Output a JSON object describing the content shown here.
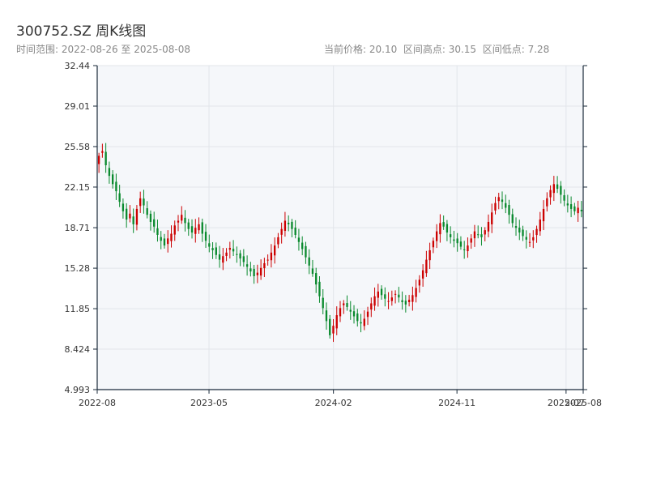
{
  "title": "300752.SZ 周K线图",
  "subtitle_left": "时间范围: 2022-08-26 至 2025-08-08",
  "stats": {
    "current": "当前价格: 20.10",
    "high": "区间高点: 30.15",
    "low": "区间低点: 7.28"
  },
  "colors": {
    "up": "#cc0000",
    "down": "#0a8a2e",
    "plot_bg": "#f5f7fa",
    "grid": "#e2e5ea",
    "axis": "#1a2a3a"
  },
  "chart_data": {
    "type": "candlestick",
    "period": "weekly",
    "x_range": [
      "2022-08-26",
      "2025-08-08"
    ],
    "ylim": [
      4.993,
      32.44
    ],
    "yticks": [
      "32.44",
      "29.01",
      "25.58",
      "22.15",
      "18.71",
      "15.28",
      "11.85",
      "8.424",
      "4.993"
    ],
    "xticks": [
      "2022-08",
      "2023-05",
      "2024-02",
      "2024-11",
      "2025-07",
      "2025-08"
    ],
    "grid": true,
    "close_series": [
      24.8,
      25.2,
      24.0,
      23.1,
      22.4,
      21.8,
      20.9,
      20.1,
      19.4,
      19.9,
      19.0,
      20.3,
      21.2,
      20.6,
      19.8,
      19.2,
      18.8,
      18.1,
      17.6,
      17.2,
      17.8,
      18.2,
      18.9,
      19.3,
      19.8,
      19.1,
      18.6,
      18.3,
      18.7,
      19.0,
      18.2,
      17.6,
      17.1,
      16.8,
      16.4,
      16.0,
      16.3,
      16.6,
      17.0,
      16.7,
      16.4,
      16.1,
      15.8,
      15.4,
      15.0,
      14.6,
      14.9,
      15.3,
      15.7,
      16.0,
      16.6,
      17.2,
      17.9,
      18.6,
      19.3,
      19.0,
      18.6,
      18.1,
      17.5,
      16.9,
      16.2,
      15.5,
      14.8,
      13.9,
      12.9,
      11.9,
      10.8,
      9.6,
      10.4,
      11.3,
      11.9,
      12.3,
      12.0,
      11.6,
      11.2,
      10.8,
      10.6,
      11.0,
      11.6,
      12.3,
      12.9,
      13.3,
      13.0,
      12.7,
      12.5,
      12.8,
      13.1,
      12.8,
      12.4,
      12.2,
      12.6,
      13.0,
      13.6,
      14.3,
      15.1,
      16.0,
      16.8,
      17.6,
      18.4,
      19.1,
      18.8,
      18.3,
      17.9,
      17.6,
      17.4,
      17.1,
      16.8,
      17.2,
      17.8,
      18.4,
      18.1,
      17.9,
      18.5,
      19.2,
      20.0,
      20.8,
      21.3,
      20.9,
      20.4,
      19.8,
      19.1,
      18.7,
      18.3,
      18.0,
      17.7,
      17.5,
      17.9,
      18.6,
      19.4,
      20.3,
      21.2,
      21.9,
      22.4,
      22.0,
      21.5,
      21.0,
      20.6,
      20.3,
      20.1,
      20.4,
      20.1
    ]
  }
}
